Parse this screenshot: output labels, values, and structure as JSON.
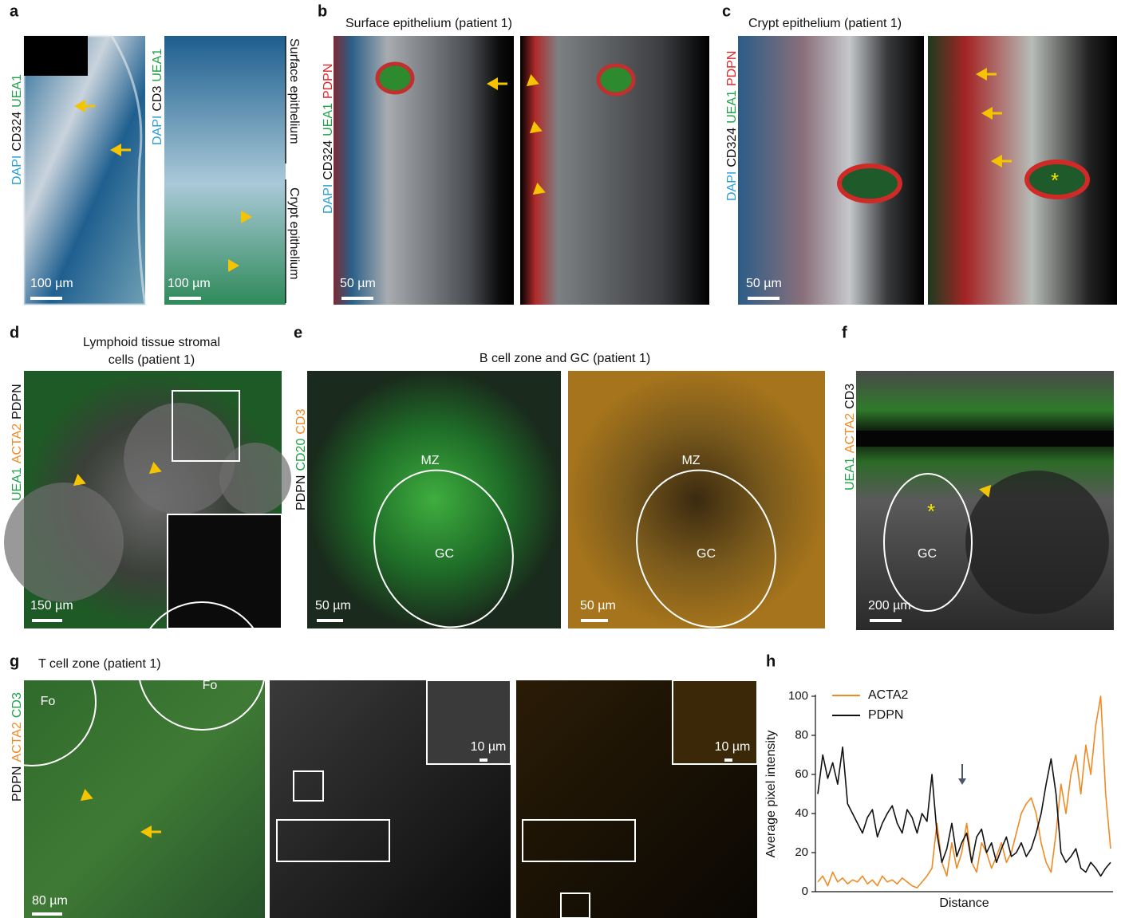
{
  "a": {
    "letter": "a",
    "channels_1": [
      {
        "text": "DAPI",
        "color": "#2a9fd6"
      },
      {
        "text": "CD324",
        "color": "#111111"
      },
      {
        "text": "UEA1",
        "color": "#21a24a"
      }
    ],
    "channels_2": [
      {
        "text": "DAPI",
        "color": "#2a9fd6"
      },
      {
        "text": "CD3",
        "color": "#111111"
      },
      {
        "text": "UEA1",
        "color": "#21a24a"
      }
    ],
    "regions": [
      "Surface epithelium",
      "Crypt epithelium"
    ],
    "scale_1": "100 µm",
    "scale_2": "100 µm"
  },
  "b": {
    "letter": "b",
    "title": "Surface epithelium (patient 1)",
    "channels": [
      {
        "text": "DAPI",
        "color": "#2a9fd6"
      },
      {
        "text": "CD324",
        "color": "#111111"
      },
      {
        "text": "UEA1",
        "color": "#21a24a"
      },
      {
        "text": "PDPN",
        "color": "#e0262b"
      }
    ],
    "scale": "50 µm"
  },
  "c": {
    "letter": "c",
    "title": "Crypt epithelium (patient 1)",
    "channels": [
      {
        "text": "DAPI",
        "color": "#2a9fd6"
      },
      {
        "text": "CD324",
        "color": "#111111"
      },
      {
        "text": "UEA1",
        "color": "#21a24a"
      },
      {
        "text": "PDPN",
        "color": "#e0262b"
      }
    ],
    "scale": "50 µm",
    "mark": "*"
  },
  "d": {
    "letter": "d",
    "title_lines": [
      "Lymphoid tissue stromal",
      "cells (patient 1)"
    ],
    "channels": [
      {
        "text": "UEA1",
        "color": "#21a24a"
      },
      {
        "text": "ACTA2",
        "color": "#f08a24"
      },
      {
        "text": "PDPN",
        "color": "#111111"
      }
    ],
    "scale": "150 µm"
  },
  "e": {
    "letter": "e",
    "title": "B cell zone and GC (patient 1)",
    "channels": [
      {
        "text": "PDPN",
        "color": "#111111"
      },
      {
        "text": "CD20",
        "color": "#21a24a"
      },
      {
        "text": "CD3",
        "color": "#f08a24"
      }
    ],
    "zones": [
      "MZ",
      "GC",
      "MZ",
      "GC"
    ],
    "scale_1": "50 µm",
    "scale_2": "50 µm"
  },
  "f": {
    "letter": "f",
    "channels": [
      {
        "text": "UEA1",
        "color": "#21a24a"
      },
      {
        "text": "ACTA2",
        "color": "#f08a24"
      },
      {
        "text": "CD3",
        "color": "#111111"
      }
    ],
    "zone": "GC",
    "mark": "*",
    "scale": "200 µm"
  },
  "g": {
    "letter": "g",
    "title": "T cell zone (patient 1)",
    "channels": [
      {
        "text": "PDPN",
        "color": "#111111"
      },
      {
        "text": "ACTA2",
        "color": "#f08a24"
      },
      {
        "text": "CD3",
        "color": "#21a24a"
      }
    ],
    "zones": [
      "Fo",
      "Fo"
    ],
    "scale": "80 µm",
    "inset_scale_1": "10 µm",
    "inset_scale_2": "10 µm"
  },
  "h": {
    "letter": "h",
    "type": "line",
    "xlabel": "Distance",
    "ylabel": "Average pixel intensity",
    "ylim": [
      0,
      100
    ],
    "yticks": [
      0,
      20,
      40,
      60,
      80,
      100
    ],
    "series": [
      {
        "name": "ACTA2",
        "color": "#f08a24",
        "values": [
          5,
          8,
          3,
          10,
          5,
          7,
          4,
          6,
          5,
          8,
          4,
          6,
          3,
          8,
          5,
          6,
          4,
          7,
          5,
          3,
          2,
          5,
          8,
          12,
          35,
          15,
          8,
          25,
          12,
          20,
          35,
          15,
          10,
          25,
          20,
          12,
          18,
          25,
          15,
          20,
          30,
          40,
          45,
          48,
          40,
          25,
          15,
          10,
          30,
          55,
          40,
          60,
          70,
          50,
          75,
          60,
          85,
          100,
          50,
          22
        ]
      },
      {
        "name": "PDPN",
        "color": "#111111",
        "values": [
          50,
          70,
          58,
          66,
          55,
          74,
          45,
          40,
          35,
          30,
          38,
          42,
          28,
          35,
          40,
          44,
          35,
          30,
          42,
          38,
          30,
          40,
          36,
          60,
          30,
          15,
          22,
          35,
          18,
          25,
          30,
          15,
          28,
          32,
          20,
          25,
          15,
          22,
          28,
          18,
          20,
          25,
          18,
          22,
          30,
          40,
          55,
          68,
          50,
          20,
          15,
          18,
          22,
          12,
          10,
          15,
          12,
          8,
          12,
          15
        ]
      }
    ]
  }
}
